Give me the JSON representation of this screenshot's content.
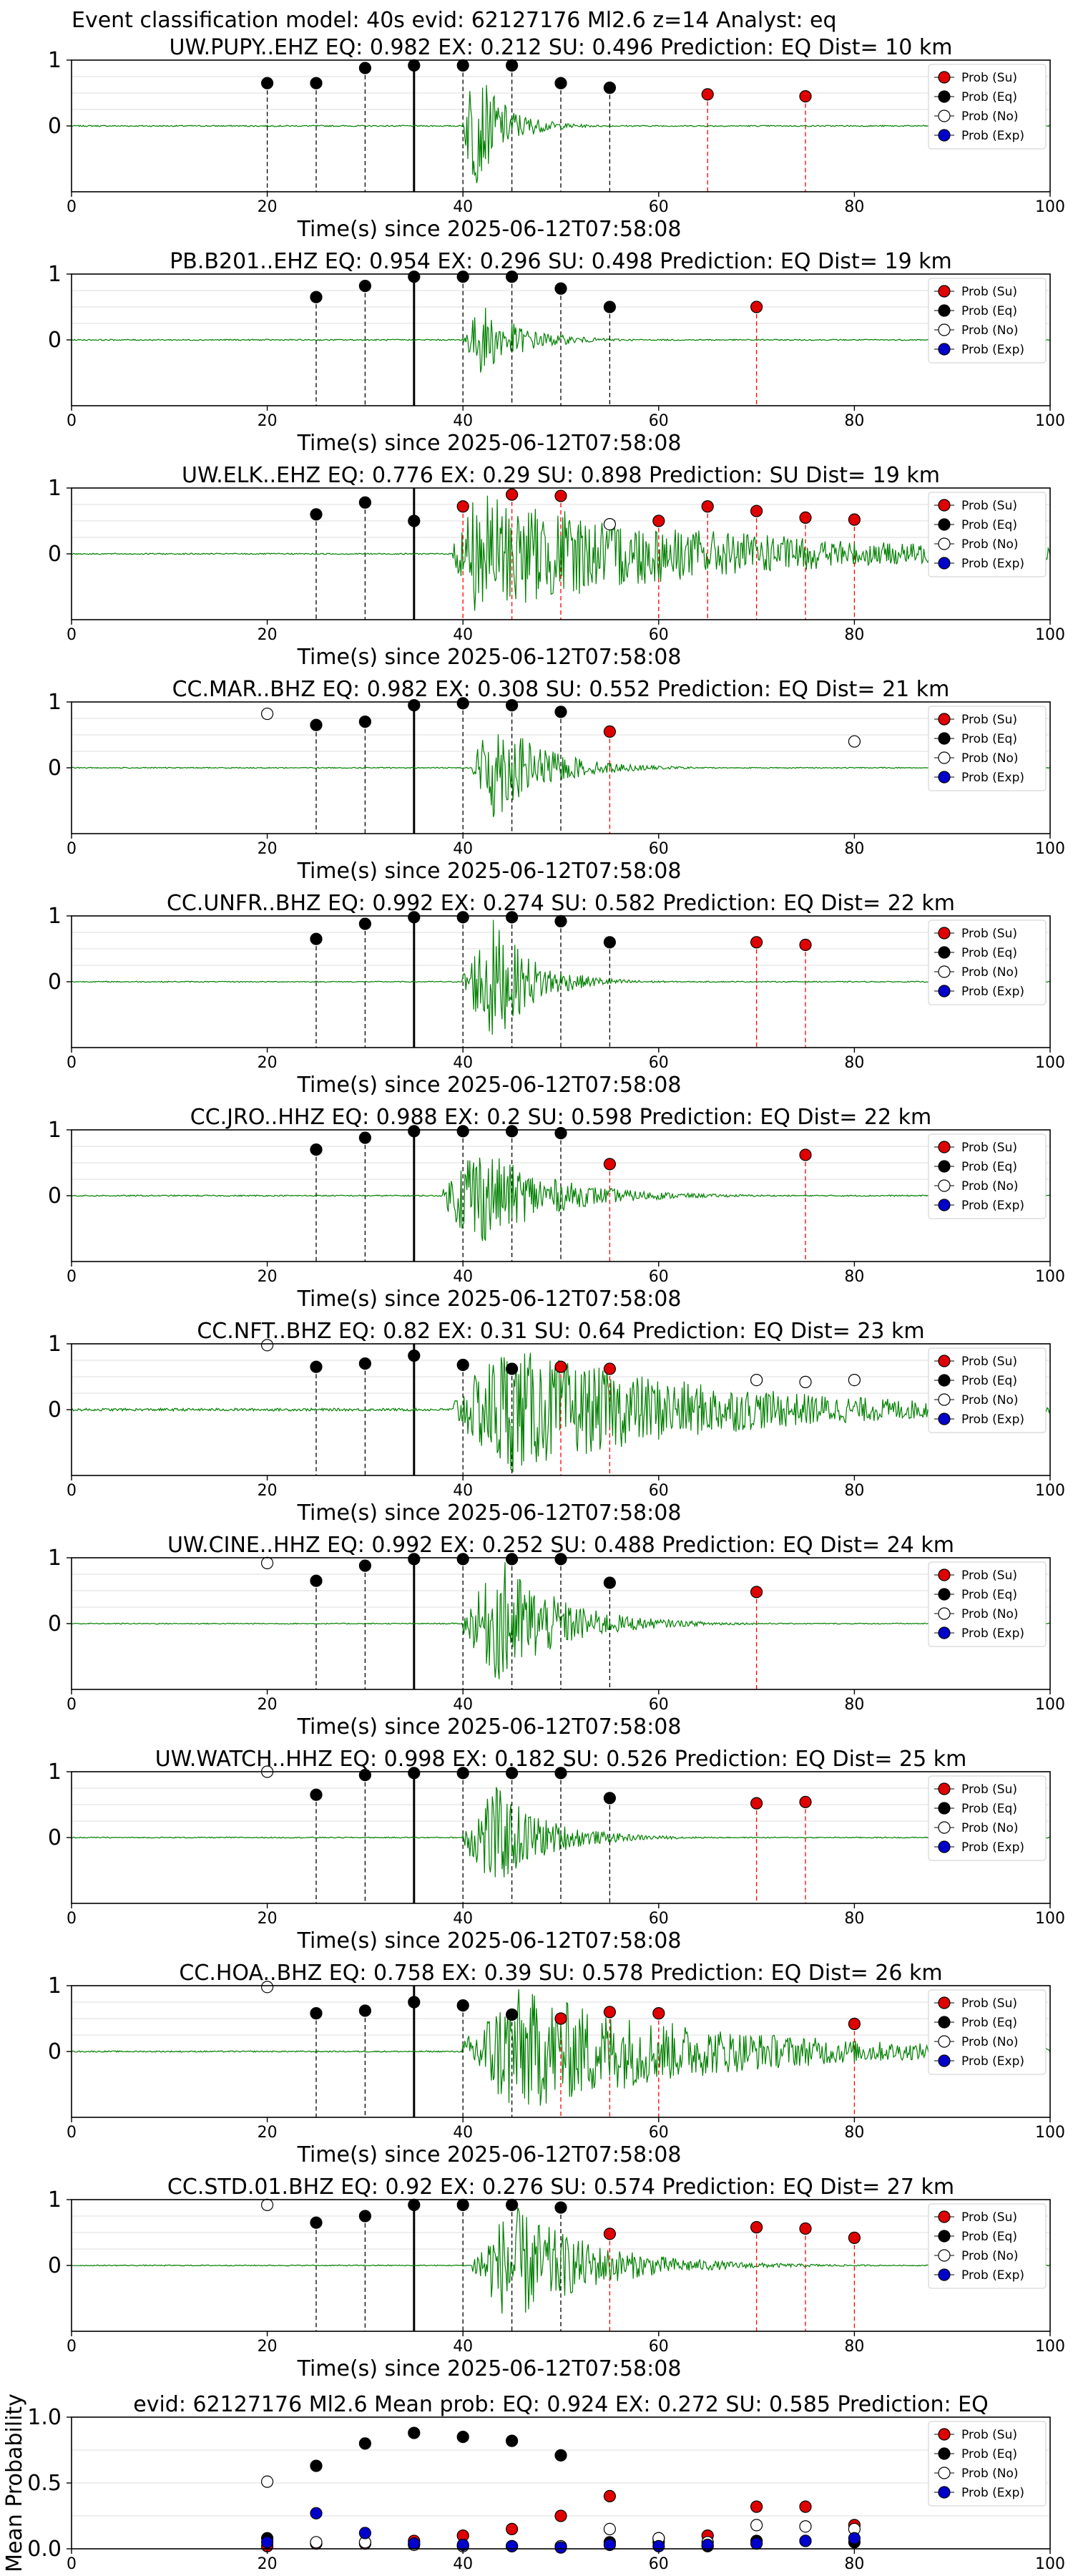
{
  "suptitle": "Event classification model: 40s evid: 62127176 Ml2.6 z=14 Analyst: eq",
  "xlabel": "Time(s) since 2025-06-12T07:58:08",
  "xlim": [
    0,
    100
  ],
  "xticks": [
    "0",
    "20",
    "40",
    "60",
    "80",
    "100"
  ],
  "legend_labels": [
    "Prob (Su)",
    "Prob (Eq)",
    "Prob (No)",
    "Prob (Exp)"
  ],
  "colors": {
    "waveform": "#008000",
    "su": "#e00000",
    "eq": "#000000",
    "no": "#ffffff",
    "exp": "#0000cc",
    "red_marker_line": "#ff0000",
    "black_marker_line": "#000000",
    "grid": "#dddddd"
  },
  "chart_data": [
    {
      "type": "scatter",
      "title": "UW.PUPY..EHZ   EQ: 0.982  EX: 0.212  SU: 0.496   Prediction: EQ    Dist= 10 km",
      "yticks": [
        "1",
        "0"
      ],
      "ylim": [
        -1,
        1
      ],
      "arrival": 35,
      "burst": {
        "start": 40,
        "peak": 41,
        "amp": 1.0,
        "tail": 3,
        "noise": 0.01
      },
      "points": [
        {
          "x": 20,
          "y": 0.65,
          "cls": "eq"
        },
        {
          "x": 25,
          "y": 0.65,
          "cls": "eq"
        },
        {
          "x": 30,
          "y": 0.88,
          "cls": "eq"
        },
        {
          "x": 35,
          "y": 0.92,
          "cls": "eq"
        },
        {
          "x": 40,
          "y": 0.92,
          "cls": "eq"
        },
        {
          "x": 45,
          "y": 0.92,
          "cls": "eq"
        },
        {
          "x": 50,
          "y": 0.65,
          "cls": "eq"
        },
        {
          "x": 55,
          "y": 0.58,
          "cls": "eq"
        },
        {
          "x": 65,
          "y": 0.48,
          "cls": "su"
        },
        {
          "x": 75,
          "y": 0.45,
          "cls": "su"
        }
      ]
    },
    {
      "type": "scatter",
      "title": "PB.B201..EHZ   EQ: 0.954  EX: 0.296  SU: 0.498   Prediction: EQ    Dist= 19 km",
      "yticks": [
        "1",
        "0"
      ],
      "ylim": [
        -1,
        1
      ],
      "arrival": 35,
      "burst": {
        "start": 40,
        "peak": 42,
        "amp": 0.55,
        "tail": 4,
        "noise": 0.01
      },
      "points": [
        {
          "x": 25,
          "y": 0.65,
          "cls": "eq"
        },
        {
          "x": 30,
          "y": 0.82,
          "cls": "eq"
        },
        {
          "x": 35,
          "y": 0.96,
          "cls": "eq"
        },
        {
          "x": 40,
          "y": 0.96,
          "cls": "eq"
        },
        {
          "x": 45,
          "y": 0.96,
          "cls": "eq"
        },
        {
          "x": 50,
          "y": 0.78,
          "cls": "eq"
        },
        {
          "x": 55,
          "y": 0.5,
          "cls": "eq"
        },
        {
          "x": 70,
          "y": 0.5,
          "cls": "su"
        }
      ]
    },
    {
      "type": "scatter",
      "title": "UW.ELK..EHZ   EQ: 0.776  EX: 0.29  SU: 0.898   Prediction: SU    Dist= 19 km",
      "yticks": [
        "1",
        "0"
      ],
      "ylim": [
        -1,
        1
      ],
      "arrival": 35,
      "burst": {
        "start": 39,
        "peak": 41,
        "amp": 0.95,
        "tail": 25,
        "noise": 0.01
      },
      "points": [
        {
          "x": 25,
          "y": 0.6,
          "cls": "eq"
        },
        {
          "x": 30,
          "y": 0.78,
          "cls": "eq"
        },
        {
          "x": 35,
          "y": 0.5,
          "cls": "eq"
        },
        {
          "x": 40,
          "y": 0.72,
          "cls": "su"
        },
        {
          "x": 45,
          "y": 0.9,
          "cls": "su"
        },
        {
          "x": 50,
          "y": 0.88,
          "cls": "su"
        },
        {
          "x": 55,
          "y": 0.45,
          "cls": "no"
        },
        {
          "x": 60,
          "y": 0.5,
          "cls": "su"
        },
        {
          "x": 65,
          "y": 0.72,
          "cls": "su"
        },
        {
          "x": 70,
          "y": 0.65,
          "cls": "su"
        },
        {
          "x": 75,
          "y": 0.55,
          "cls": "su"
        },
        {
          "x": 80,
          "y": 0.52,
          "cls": "su"
        }
      ]
    },
    {
      "type": "scatter",
      "title": "CC.MAR..BHZ   EQ: 0.982  EX: 0.308  SU: 0.552   Prediction: EQ    Dist= 21 km",
      "yticks": [
        "1",
        "0"
      ],
      "ylim": [
        -1,
        1
      ],
      "arrival": 35,
      "burst": {
        "start": 41,
        "peak": 43,
        "amp": 0.85,
        "tail": 5,
        "noise": 0.008
      },
      "points": [
        {
          "x": 20,
          "y": 0.82,
          "cls": "no"
        },
        {
          "x": 25,
          "y": 0.65,
          "cls": "eq"
        },
        {
          "x": 30,
          "y": 0.7,
          "cls": "eq"
        },
        {
          "x": 35,
          "y": 0.95,
          "cls": "eq"
        },
        {
          "x": 40,
          "y": 0.98,
          "cls": "eq"
        },
        {
          "x": 45,
          "y": 0.95,
          "cls": "eq"
        },
        {
          "x": 50,
          "y": 0.85,
          "cls": "eq"
        },
        {
          "x": 55,
          "y": 0.55,
          "cls": "su"
        },
        {
          "x": 80,
          "y": 0.4,
          "cls": "no"
        }
      ]
    },
    {
      "type": "scatter",
      "title": "CC.UNFR..BHZ   EQ: 0.992  EX: 0.274  SU: 0.582   Prediction: EQ    Dist= 22 km",
      "yticks": [
        "1",
        "0"
      ],
      "ylim": [
        -1,
        1
      ],
      "arrival": 35,
      "burst": {
        "start": 40,
        "peak": 43,
        "amp": 1.0,
        "tail": 4,
        "noise": 0.008
      },
      "points": [
        {
          "x": 25,
          "y": 0.65,
          "cls": "eq"
        },
        {
          "x": 30,
          "y": 0.88,
          "cls": "eq"
        },
        {
          "x": 35,
          "y": 0.98,
          "cls": "eq"
        },
        {
          "x": 40,
          "y": 0.98,
          "cls": "eq"
        },
        {
          "x": 45,
          "y": 0.98,
          "cls": "eq"
        },
        {
          "x": 50,
          "y": 0.92,
          "cls": "eq"
        },
        {
          "x": 55,
          "y": 0.6,
          "cls": "eq"
        },
        {
          "x": 70,
          "y": 0.6,
          "cls": "su"
        },
        {
          "x": 75,
          "y": 0.56,
          "cls": "su"
        }
      ]
    },
    {
      "type": "scatter",
      "title": "CC.JRO..HHZ   EQ: 0.988  EX: 0.2  SU: 0.598   Prediction: EQ    Dist= 22 km",
      "yticks": [
        "1",
        "0"
      ],
      "ylim": [
        -1,
        1
      ],
      "arrival": 35,
      "burst": {
        "start": 38,
        "peak": 41,
        "amp": 0.85,
        "tail": 7,
        "noise": 0.01
      },
      "points": [
        {
          "x": 25,
          "y": 0.7,
          "cls": "eq"
        },
        {
          "x": 30,
          "y": 0.88,
          "cls": "eq"
        },
        {
          "x": 35,
          "y": 0.98,
          "cls": "eq"
        },
        {
          "x": 40,
          "y": 0.98,
          "cls": "eq"
        },
        {
          "x": 45,
          "y": 0.98,
          "cls": "eq"
        },
        {
          "x": 50,
          "y": 0.95,
          "cls": "eq"
        },
        {
          "x": 55,
          "y": 0.48,
          "cls": "su"
        },
        {
          "x": 75,
          "y": 0.62,
          "cls": "su"
        }
      ]
    },
    {
      "type": "scatter",
      "title": "CC.NFT..BHZ   EQ: 0.82  EX: 0.31  SU: 0.64   Prediction: EQ    Dist= 23 km",
      "yticks": [
        "1",
        "0"
      ],
      "ylim": [
        -1,
        1
      ],
      "arrival": 35,
      "burst": {
        "start": 39,
        "peak": 44,
        "amp": 1.0,
        "tail": 22,
        "noise": 0.02
      },
      "points": [
        {
          "x": 20,
          "y": 0.98,
          "cls": "no"
        },
        {
          "x": 25,
          "y": 0.65,
          "cls": "eq"
        },
        {
          "x": 30,
          "y": 0.7,
          "cls": "eq"
        },
        {
          "x": 35,
          "y": 0.82,
          "cls": "eq"
        },
        {
          "x": 40,
          "y": 0.68,
          "cls": "eq"
        },
        {
          "x": 45,
          "y": 0.62,
          "cls": "eq"
        },
        {
          "x": 50,
          "y": 0.65,
          "cls": "su"
        },
        {
          "x": 55,
          "y": 0.62,
          "cls": "su"
        },
        {
          "x": 70,
          "y": 0.45,
          "cls": "no"
        },
        {
          "x": 75,
          "y": 0.42,
          "cls": "no"
        },
        {
          "x": 80,
          "y": 0.45,
          "cls": "no"
        }
      ]
    },
    {
      "type": "scatter",
      "title": "UW.CINE..HHZ   EQ: 0.992  EX: 0.252  SU: 0.488   Prediction: EQ    Dist= 24 km",
      "yticks": [
        "1",
        "0"
      ],
      "ylim": [
        -1,
        1
      ],
      "arrival": 35,
      "burst": {
        "start": 40,
        "peak": 44,
        "amp": 1.0,
        "tail": 6,
        "noise": 0.008
      },
      "points": [
        {
          "x": 20,
          "y": 0.92,
          "cls": "no"
        },
        {
          "x": 25,
          "y": 0.65,
          "cls": "eq"
        },
        {
          "x": 30,
          "y": 0.88,
          "cls": "eq"
        },
        {
          "x": 35,
          "y": 0.98,
          "cls": "eq"
        },
        {
          "x": 40,
          "y": 0.98,
          "cls": "eq"
        },
        {
          "x": 45,
          "y": 0.98,
          "cls": "eq"
        },
        {
          "x": 50,
          "y": 0.98,
          "cls": "eq"
        },
        {
          "x": 55,
          "y": 0.62,
          "cls": "eq"
        },
        {
          "x": 70,
          "y": 0.48,
          "cls": "su"
        }
      ]
    },
    {
      "type": "scatter",
      "title": "UW.WATCH..HHZ   EQ: 0.998  EX: 0.182  SU: 0.526   Prediction: EQ    Dist= 25 km",
      "yticks": [
        "1",
        "0"
      ],
      "ylim": [
        -1,
        1
      ],
      "arrival": 35,
      "burst": {
        "start": 40,
        "peak": 43,
        "amp": 0.85,
        "tail": 5,
        "noise": 0.008
      },
      "points": [
        {
          "x": 20,
          "y": 1.0,
          "cls": "no"
        },
        {
          "x": 25,
          "y": 0.65,
          "cls": "eq"
        },
        {
          "x": 30,
          "y": 0.95,
          "cls": "eq"
        },
        {
          "x": 35,
          "y": 0.98,
          "cls": "eq"
        },
        {
          "x": 40,
          "y": 0.98,
          "cls": "eq"
        },
        {
          "x": 45,
          "y": 0.98,
          "cls": "eq"
        },
        {
          "x": 50,
          "y": 0.98,
          "cls": "eq"
        },
        {
          "x": 55,
          "y": 0.6,
          "cls": "eq"
        },
        {
          "x": 70,
          "y": 0.52,
          "cls": "su"
        },
        {
          "x": 75,
          "y": 0.54,
          "cls": "su"
        }
      ]
    },
    {
      "type": "scatter",
      "title": "CC.HOA..BHZ   EQ: 0.758  EX: 0.39  SU: 0.578   Prediction: EQ    Dist= 26 km",
      "yticks": [
        "1",
        "0"
      ],
      "ylim": [
        -1,
        1
      ],
      "arrival": 35,
      "burst": {
        "start": 40,
        "peak": 45,
        "amp": 1.0,
        "tail": 20,
        "noise": 0.01
      },
      "points": [
        {
          "x": 20,
          "y": 0.98,
          "cls": "no"
        },
        {
          "x": 25,
          "y": 0.58,
          "cls": "eq"
        },
        {
          "x": 30,
          "y": 0.62,
          "cls": "eq"
        },
        {
          "x": 35,
          "y": 0.75,
          "cls": "eq"
        },
        {
          "x": 40,
          "y": 0.7,
          "cls": "eq"
        },
        {
          "x": 45,
          "y": 0.56,
          "cls": "eq"
        },
        {
          "x": 50,
          "y": 0.5,
          "cls": "su"
        },
        {
          "x": 55,
          "y": 0.6,
          "cls": "su"
        },
        {
          "x": 60,
          "y": 0.58,
          "cls": "su"
        },
        {
          "x": 80,
          "y": 0.42,
          "cls": "su"
        }
      ]
    },
    {
      "type": "scatter",
      "title": "CC.STD.01.BHZ   EQ: 0.92  EX: 0.276  SU: 0.574   Prediction: EQ    Dist= 27 km",
      "yticks": [
        "1",
        "0"
      ],
      "ylim": [
        -1,
        1
      ],
      "arrival": 35,
      "burst": {
        "start": 41,
        "peak": 45,
        "amp": 0.95,
        "tail": 8,
        "noise": 0.008
      },
      "points": [
        {
          "x": 20,
          "y": 0.92,
          "cls": "no"
        },
        {
          "x": 25,
          "y": 0.65,
          "cls": "eq"
        },
        {
          "x": 30,
          "y": 0.75,
          "cls": "eq"
        },
        {
          "x": 35,
          "y": 0.92,
          "cls": "eq"
        },
        {
          "x": 40,
          "y": 0.92,
          "cls": "eq"
        },
        {
          "x": 45,
          "y": 0.92,
          "cls": "eq"
        },
        {
          "x": 50,
          "y": 0.88,
          "cls": "eq"
        },
        {
          "x": 55,
          "y": 0.48,
          "cls": "su"
        },
        {
          "x": 70,
          "y": 0.58,
          "cls": "su"
        },
        {
          "x": 75,
          "y": 0.56,
          "cls": "su"
        },
        {
          "x": 80,
          "y": 0.42,
          "cls": "su"
        }
      ]
    },
    {
      "type": "scatter",
      "title": "evid: 62127176  Ml2.6   Mean prob:   EQ: 0.924  EX: 0.272  SU: 0.585   Prediction: EQ",
      "ylabel": "Mean Probability",
      "yticks": [
        "1.0",
        "0.5",
        "0.0"
      ],
      "ylim": [
        0,
        1
      ],
      "series": [
        {
          "name": "Prob (Su)",
          "cls": "su",
          "x": [
            20,
            25,
            30,
            35,
            40,
            45,
            50,
            55,
            60,
            65,
            70,
            75,
            80
          ],
          "values": [
            0.02,
            0.04,
            0.04,
            0.06,
            0.1,
            0.15,
            0.25,
            0.4,
            0.08,
            0.1,
            0.32,
            0.32,
            0.18
          ]
        },
        {
          "name": "Prob (Eq)",
          "cls": "eq",
          "x": [
            20,
            25,
            30,
            35,
            40,
            45,
            50,
            55,
            60,
            65,
            70,
            75,
            80
          ],
          "values": [
            0.08,
            0.63,
            0.8,
            0.88,
            0.85,
            0.82,
            0.71,
            0.05,
            0.05,
            0.02,
            0.06,
            0.06,
            0.05
          ]
        },
        {
          "name": "Prob (No)",
          "cls": "no",
          "x": [
            20,
            25,
            30,
            35,
            40,
            45,
            50,
            55,
            60,
            65,
            70,
            75,
            80
          ],
          "values": [
            0.51,
            0.05,
            0.05,
            0.03,
            0.02,
            0.02,
            0.02,
            0.15,
            0.08,
            0.05,
            0.18,
            0.17,
            0.15
          ]
        },
        {
          "name": "Prob (Exp)",
          "cls": "exp",
          "x": [
            20,
            25,
            30,
            35,
            40,
            45,
            50,
            55,
            60,
            65,
            70,
            75,
            80
          ],
          "values": [
            0.05,
            0.27,
            0.12,
            0.04,
            0.03,
            0.02,
            0.01,
            0.03,
            0.02,
            0.03,
            0.04,
            0.06,
            0.08
          ]
        }
      ]
    }
  ]
}
